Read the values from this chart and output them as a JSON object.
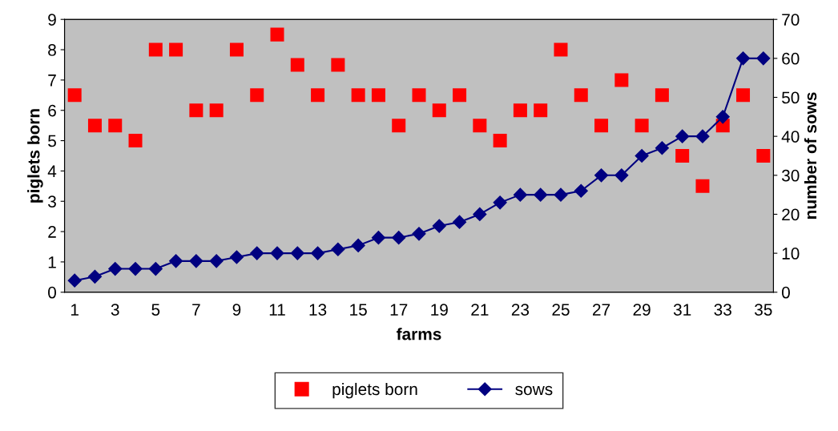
{
  "chart_data": {
    "type": "scatter",
    "xlabel": "farms",
    "ylabel": "piglets born",
    "y2label": "number of sows",
    "categories": [
      "1",
      null,
      "3",
      null,
      "5",
      null,
      "7",
      null,
      "9",
      null,
      "11",
      null,
      "13",
      null,
      "15",
      null,
      "17",
      null,
      "19",
      null,
      "21",
      null,
      "23",
      null,
      "25",
      null,
      "27",
      null,
      "29",
      null,
      "31",
      null,
      "33",
      null,
      "35"
    ],
    "series": [
      {
        "name": "piglets born",
        "marker": "square",
        "color": "#ff0000",
        "values": [
          6.5,
          5.5,
          5.5,
          5,
          8,
          8,
          6,
          6,
          8,
          6.5,
          8.5,
          7.5,
          6.5,
          7.5,
          6.5,
          6.5,
          5.5,
          6.5,
          6,
          6.5,
          5.5,
          5,
          6,
          6,
          8,
          6.5,
          5.5,
          7,
          5.5,
          6.5,
          4.5,
          3.5,
          5.5,
          6.5,
          4.5
        ]
      },
      {
        "name": "sows",
        "type": "line",
        "marker": "diamond",
        "axis": "y2",
        "color": "#000080",
        "values": [
          3,
          4,
          6,
          6,
          6,
          8,
          8,
          8,
          9,
          10,
          10,
          10,
          10,
          11,
          12,
          14,
          14,
          15,
          17,
          18,
          20,
          23,
          25,
          25,
          25,
          26,
          30,
          30,
          35,
          37,
          40,
          40,
          45,
          60,
          60
        ]
      }
    ],
    "ylim": [
      0,
      9
    ],
    "yticks": [
      0,
      1,
      2,
      3,
      4,
      5,
      6,
      7,
      8,
      9
    ],
    "y2lim": [
      0,
      70
    ],
    "y2ticks": [
      0,
      10,
      20,
      30,
      40,
      50,
      60,
      70
    ],
    "grid": false,
    "legend": "bottom"
  }
}
